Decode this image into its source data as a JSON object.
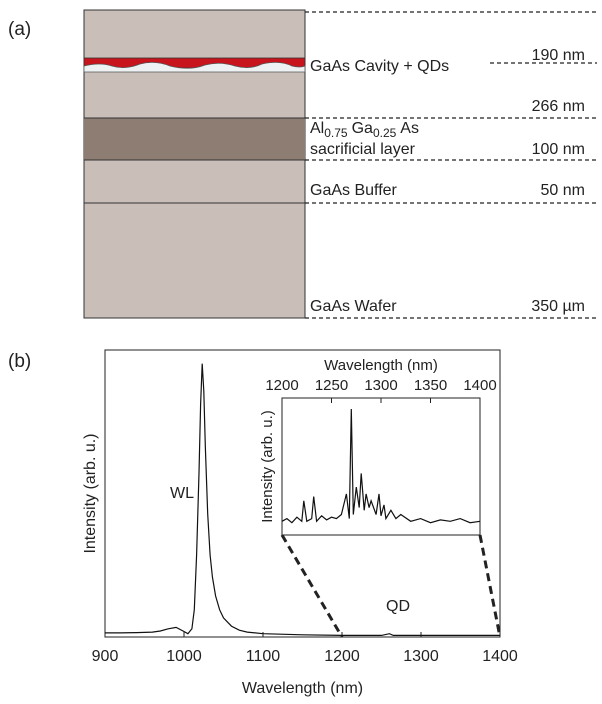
{
  "label_a": "(a)",
  "layers": {
    "cavity": {
      "name": "GaAs Cavity + QDs",
      "thickness": "190 nm"
    },
    "top_gap": {
      "thickness": "266 nm"
    },
    "sacrificial": {
      "name_parts": [
        "Al",
        "0.75",
        "Ga",
        "0.25",
        "As"
      ],
      "name_line2": "sacrificial layer",
      "thickness": "100 nm"
    },
    "buffer": {
      "name": "GaAs Buffer",
      "thickness": "50 nm"
    },
    "wafer": {
      "name": "GaAs Wafer",
      "thickness": "350 µm"
    }
  },
  "label_b": "(b)",
  "chart_data": [
    {
      "type": "line",
      "xlabel": "Wavelength (nm)",
      "ylabel": "Intensity (arb. u.)",
      "color": "#111111",
      "annotations": [
        "WL",
        "QD"
      ],
      "xlim": [
        900,
        1400
      ],
      "xticks": [
        900,
        1000,
        1100,
        1200,
        1300,
        1400
      ],
      "ylim": [
        0,
        1.05
      ],
      "x": [
        900,
        920,
        940,
        960,
        970,
        980,
        990,
        1000,
        1005,
        1010,
        1013,
        1016,
        1019,
        1021,
        1023,
        1025,
        1027,
        1030,
        1033,
        1036,
        1040,
        1045,
        1050,
        1060,
        1070,
        1080,
        1100,
        1150,
        1200,
        1250,
        1260,
        1265,
        1270,
        1300,
        1350,
        1400
      ],
      "values": [
        0.015,
        0.015,
        0.016,
        0.018,
        0.022,
        0.03,
        0.035,
        0.02,
        0.012,
        0.03,
        0.1,
        0.3,
        0.6,
        0.85,
        1.0,
        0.9,
        0.7,
        0.45,
        0.3,
        0.22,
        0.15,
        0.1,
        0.07,
        0.04,
        0.025,
        0.018,
        0.012,
        0.008,
        0.006,
        0.006,
        0.012,
        0.006,
        0.006,
        0.006,
        0.006,
        0.006
      ]
    },
    {
      "type": "line",
      "xlabel": "Wavelength (nm)",
      "ylabel": "Intensity (arb. u.)",
      "color": "#111111",
      "xlim": [
        1200,
        1400
      ],
      "xticks": [
        1200,
        1250,
        1300,
        1350,
        1400
      ],
      "ylim": [
        0,
        1
      ],
      "x": [
        1200,
        1205,
        1210,
        1215,
        1220,
        1222,
        1225,
        1230,
        1232,
        1235,
        1240,
        1245,
        1250,
        1255,
        1260,
        1265,
        1268,
        1270,
        1272,
        1275,
        1278,
        1280,
        1283,
        1285,
        1288,
        1290,
        1295,
        1298,
        1300,
        1303,
        1305,
        1310,
        1315,
        1320,
        1330,
        1340,
        1350,
        1360,
        1370,
        1380,
        1390,
        1400
      ],
      "values": [
        0.1,
        0.12,
        0.09,
        0.13,
        0.1,
        0.25,
        0.1,
        0.12,
        0.28,
        0.1,
        0.14,
        0.11,
        0.13,
        0.12,
        0.15,
        0.3,
        0.12,
        0.92,
        0.15,
        0.35,
        0.2,
        0.45,
        0.18,
        0.3,
        0.2,
        0.25,
        0.15,
        0.3,
        0.14,
        0.22,
        0.12,
        0.18,
        0.12,
        0.15,
        0.1,
        0.12,
        0.09,
        0.11,
        0.1,
        0.12,
        0.09,
        0.1
      ]
    }
  ]
}
